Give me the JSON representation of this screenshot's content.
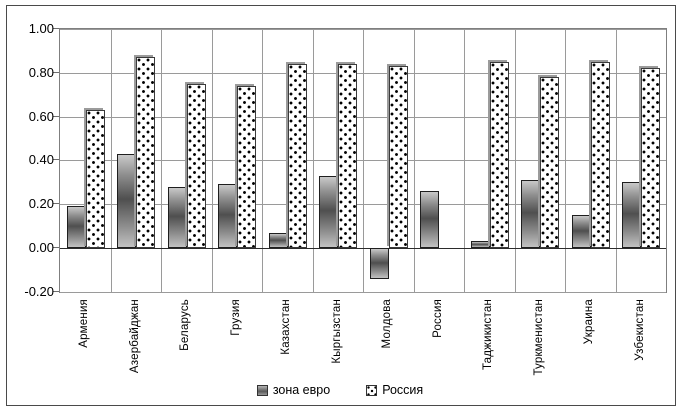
{
  "chart_data": {
    "type": "bar",
    "title": "",
    "xlabel": "",
    "ylabel": "",
    "categories": [
      "Армения",
      "Азербайджан",
      "Беларусь",
      "Грузия",
      "Казахстан",
      "Кыргызстан",
      "Молдова",
      "Россия",
      "Таджикистан",
      "Туркменистан",
      "Украина",
      "Узбекистан"
    ],
    "series": [
      {
        "name": "зона евро",
        "values": [
          0.19,
          0.43,
          0.28,
          0.29,
          0.07,
          0.33,
          -0.14,
          0.26,
          0.03,
          0.31,
          0.15,
          0.3
        ]
      },
      {
        "name": "Россия",
        "values": [
          0.63,
          0.87,
          0.75,
          0.74,
          0.84,
          0.84,
          0.83,
          null,
          0.85,
          0.78,
          0.85,
          0.82
        ]
      }
    ],
    "ylim": [
      -0.2,
      1.0
    ],
    "yticks": [
      {
        "label": "1.00",
        "value": 1.0
      },
      {
        "label": "0.80",
        "value": 0.8
      },
      {
        "label": "0.60",
        "value": 0.6
      },
      {
        "label": "0.40",
        "value": 0.4
      },
      {
        "label": "0.20",
        "value": 0.2
      },
      {
        "label": "0.00",
        "value": 0.0
      },
      {
        "label": "-0.20",
        "value": -0.2
      }
    ],
    "grid": "on",
    "legend_position": "bottom"
  },
  "colors": {
    "background": "#ffffff",
    "gridline": "#9a9a9a",
    "axis": "#6e6e6e",
    "bar_border": "#1f1f1f",
    "euro_dark": "#4f4f4f",
    "euro_light": "#c9c9c9",
    "dot": "#000000"
  }
}
